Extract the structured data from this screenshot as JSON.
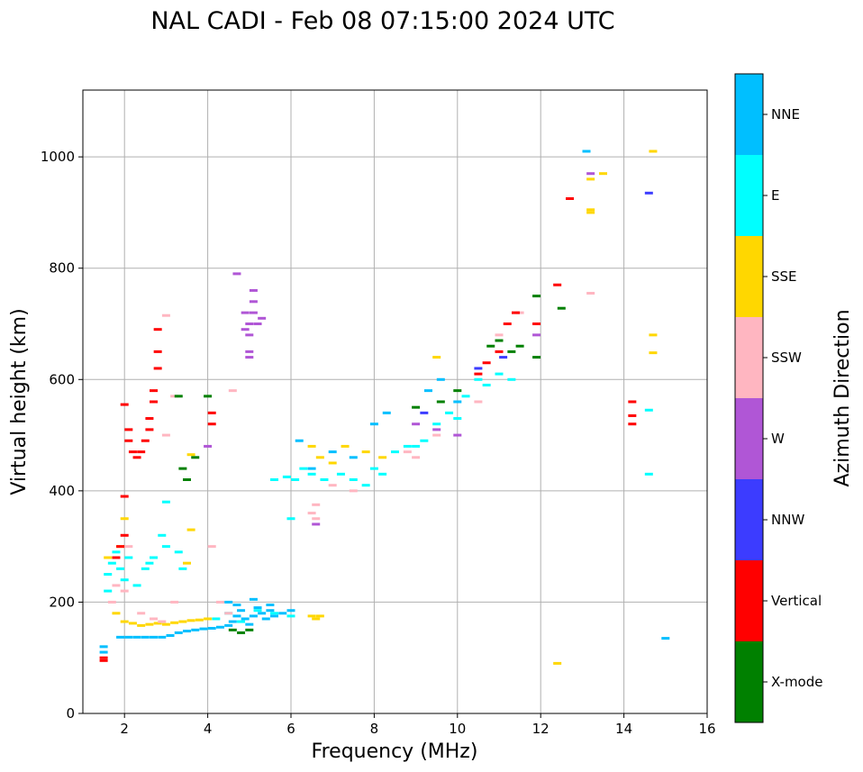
{
  "chart_data": {
    "type": "scatter",
    "title": "NAL CADI - Feb 08 07:15:00 2024 UTC",
    "xlabel": "Frequency (MHz)",
    "ylabel": "Virtual height (km)",
    "xlim": [
      1,
      16
    ],
    "ylim": [
      0,
      1120
    ],
    "xticks": [
      "2",
      "4",
      "6",
      "8",
      "10",
      "12",
      "14",
      "16"
    ],
    "yticks": [
      "0",
      "200",
      "400",
      "600",
      "800",
      "1000"
    ],
    "grid": true,
    "colorbar": {
      "label": "Azimuth Direction",
      "categories": [
        {
          "name": "X-mode",
          "color": "#008000"
        },
        {
          "name": "Vertical",
          "color": "#ff0000"
        },
        {
          "name": "NNW",
          "color": "#3c3cff"
        },
        {
          "name": "W",
          "color": "#b056d6"
        },
        {
          "name": "SSW",
          "color": "#ffb6c1"
        },
        {
          "name": "SSE",
          "color": "#ffd700"
        },
        {
          "name": "E",
          "color": "#00ffff"
        },
        {
          "name": "NNE",
          "color": "#00bfff"
        }
      ]
    },
    "series": [
      {
        "name": "NNE",
        "color": "#00bfff",
        "points": [
          [
            1.5,
            120
          ],
          [
            1.5,
            110
          ],
          [
            1.9,
            137
          ],
          [
            2.1,
            137
          ],
          [
            2.3,
            137
          ],
          [
            2.5,
            137
          ],
          [
            2.7,
            137
          ],
          [
            2.9,
            137
          ],
          [
            3.1,
            140
          ],
          [
            3.3,
            145
          ],
          [
            3.5,
            148
          ],
          [
            3.7,
            150
          ],
          [
            3.9,
            152
          ],
          [
            4.1,
            153
          ],
          [
            4.3,
            155
          ],
          [
            4.5,
            158
          ],
          [
            4.6,
            165
          ],
          [
            4.7,
            175
          ],
          [
            4.8,
            185
          ],
          [
            4.9,
            170
          ],
          [
            5.0,
            160
          ],
          [
            5.1,
            175
          ],
          [
            5.2,
            190
          ],
          [
            5.3,
            180
          ],
          [
            5.4,
            170
          ],
          [
            5.5,
            185
          ],
          [
            5.6,
            175
          ],
          [
            5.8,
            180
          ],
          [
            6.0,
            185
          ],
          [
            4.5,
            200
          ],
          [
            4.7,
            195
          ],
          [
            5.1,
            205
          ],
          [
            5.5,
            195
          ],
          [
            6.2,
            490
          ],
          [
            6.5,
            440
          ],
          [
            7.0,
            470
          ],
          [
            7.5,
            460
          ],
          [
            8.0,
            520
          ],
          [
            8.3,
            540
          ],
          [
            9.3,
            580
          ],
          [
            9.6,
            600
          ],
          [
            10.0,
            560
          ],
          [
            13.1,
            1010
          ],
          [
            15.0,
            135
          ]
        ]
      },
      {
        "name": "E",
        "color": "#00ffff",
        "points": [
          [
            1.6,
            250
          ],
          [
            1.7,
            270
          ],
          [
            1.8,
            290
          ],
          [
            1.6,
            220
          ],
          [
            1.9,
            260
          ],
          [
            2.0,
            240
          ],
          [
            2.1,
            280
          ],
          [
            2.3,
            230
          ],
          [
            2.5,
            260
          ],
          [
            2.6,
            270
          ],
          [
            2.7,
            280
          ],
          [
            2.9,
            320
          ],
          [
            3.0,
            300
          ],
          [
            3.3,
            290
          ],
          [
            3.4,
            260
          ],
          [
            4.2,
            170
          ],
          [
            4.5,
            180
          ],
          [
            4.8,
            165
          ],
          [
            5.2,
            185
          ],
          [
            5.6,
            180
          ],
          [
            6.0,
            175
          ],
          [
            5.6,
            420
          ],
          [
            5.9,
            425
          ],
          [
            6.1,
            420
          ],
          [
            6.0,
            350
          ],
          [
            6.3,
            440
          ],
          [
            6.5,
            430
          ],
          [
            6.8,
            420
          ],
          [
            7.2,
            430
          ],
          [
            7.5,
            420
          ],
          [
            7.8,
            410
          ],
          [
            8.0,
            440
          ],
          [
            8.2,
            430
          ],
          [
            8.5,
            470
          ],
          [
            8.8,
            480
          ],
          [
            9.0,
            480
          ],
          [
            9.2,
            490
          ],
          [
            9.5,
            520
          ],
          [
            9.8,
            540
          ],
          [
            10.0,
            530
          ],
          [
            10.2,
            570
          ],
          [
            10.5,
            600
          ],
          [
            10.7,
            590
          ],
          [
            11.0,
            610
          ],
          [
            11.3,
            600
          ],
          [
            14.6,
            545
          ],
          [
            14.6,
            430
          ],
          [
            3.0,
            380
          ]
        ]
      },
      {
        "name": "SSE",
        "color": "#ffd700",
        "points": [
          [
            1.8,
            180
          ],
          [
            2.0,
            165
          ],
          [
            2.2,
            162
          ],
          [
            2.4,
            158
          ],
          [
            2.6,
            160
          ],
          [
            2.8,
            162
          ],
          [
            3.0,
            160
          ],
          [
            3.2,
            163
          ],
          [
            3.4,
            165
          ],
          [
            3.6,
            167
          ],
          [
            3.8,
            168
          ],
          [
            4.0,
            170
          ],
          [
            6.5,
            175
          ],
          [
            6.6,
            170
          ],
          [
            6.7,
            175
          ],
          [
            1.6,
            280
          ],
          [
            1.9,
            300
          ],
          [
            2.0,
            350
          ],
          [
            3.5,
            270
          ],
          [
            3.6,
            330
          ],
          [
            3.6,
            465
          ],
          [
            6.5,
            480
          ],
          [
            6.7,
            460
          ],
          [
            7.0,
            450
          ],
          [
            7.3,
            480
          ],
          [
            7.8,
            470
          ],
          [
            8.2,
            460
          ],
          [
            9.5,
            640
          ],
          [
            13.2,
            960
          ],
          [
            13.2,
            905
          ],
          [
            13.2,
            900
          ],
          [
            13.5,
            970
          ],
          [
            14.7,
            1010
          ],
          [
            14.7,
            680
          ],
          [
            14.7,
            648
          ],
          [
            12.4,
            90
          ]
        ]
      },
      {
        "name": "SSW",
        "color": "#ffb6c1",
        "points": [
          [
            1.7,
            200
          ],
          [
            1.8,
            230
          ],
          [
            2.0,
            220
          ],
          [
            2.1,
            300
          ],
          [
            2.4,
            180
          ],
          [
            2.7,
            170
          ],
          [
            2.9,
            165
          ],
          [
            3.2,
            200
          ],
          [
            4.1,
            300
          ],
          [
            4.3,
            200
          ],
          [
            4.5,
            180
          ],
          [
            4.6,
            580
          ],
          [
            3.0,
            500
          ],
          [
            3.0,
            715
          ],
          [
            6.5,
            360
          ],
          [
            6.6,
            350
          ],
          [
            6.6,
            375
          ],
          [
            7.0,
            410
          ],
          [
            7.5,
            400
          ],
          [
            8.8,
            470
          ],
          [
            9.0,
            460
          ],
          [
            9.5,
            500
          ],
          [
            10.5,
            560
          ],
          [
            11.0,
            680
          ],
          [
            11.5,
            720
          ],
          [
            13.2,
            755
          ],
          [
            3.2,
            570
          ]
        ]
      },
      {
        "name": "W",
        "color": "#b056d6",
        "points": [
          [
            4.7,
            790
          ],
          [
            4.9,
            720
          ],
          [
            5.0,
            700
          ],
          [
            5.0,
            680
          ],
          [
            5.1,
            740
          ],
          [
            5.1,
            760
          ],
          [
            5.2,
            700
          ],
          [
            4.9,
            690
          ],
          [
            5.0,
            650
          ],
          [
            5.1,
            720
          ],
          [
            5.3,
            710
          ],
          [
            5.0,
            640
          ],
          [
            4.0,
            480
          ],
          [
            6.6,
            340
          ],
          [
            9.0,
            520
          ],
          [
            9.5,
            510
          ],
          [
            10.0,
            500
          ],
          [
            11.9,
            680
          ],
          [
            13.2,
            970
          ]
        ]
      },
      {
        "name": "NNW",
        "color": "#3c3cff",
        "points": [
          [
            14.6,
            935
          ],
          [
            9.2,
            540
          ],
          [
            10.5,
            620
          ],
          [
            11.1,
            640
          ]
        ]
      },
      {
        "name": "Vertical",
        "color": "#ff0000",
        "points": [
          [
            1.5,
            100
          ],
          [
            1.5,
            95
          ],
          [
            1.8,
            280
          ],
          [
            1.9,
            300
          ],
          [
            2.0,
            320
          ],
          [
            2.0,
            390
          ],
          [
            2.0,
            555
          ],
          [
            2.1,
            510
          ],
          [
            2.1,
            490
          ],
          [
            2.2,
            470
          ],
          [
            2.3,
            460
          ],
          [
            2.4,
            470
          ],
          [
            2.5,
            490
          ],
          [
            2.6,
            510
          ],
          [
            2.6,
            530
          ],
          [
            2.7,
            560
          ],
          [
            2.7,
            580
          ],
          [
            2.8,
            620
          ],
          [
            2.8,
            650
          ],
          [
            2.8,
            690
          ],
          [
            4.1,
            520
          ],
          [
            4.1,
            540
          ],
          [
            10.5,
            610
          ],
          [
            10.7,
            630
          ],
          [
            11.0,
            650
          ],
          [
            11.2,
            700
          ],
          [
            11.4,
            720
          ],
          [
            11.9,
            700
          ],
          [
            12.7,
            925
          ],
          [
            12.4,
            770
          ],
          [
            14.2,
            560
          ],
          [
            14.2,
            535
          ],
          [
            14.2,
            520
          ]
        ]
      },
      {
        "name": "X-mode",
        "color": "#008000",
        "points": [
          [
            3.4,
            440
          ],
          [
            3.5,
            420
          ],
          [
            3.7,
            460
          ],
          [
            4.0,
            570
          ],
          [
            3.3,
            570
          ],
          [
            4.8,
            145
          ],
          [
            5.0,
            150
          ],
          [
            4.6,
            150
          ],
          [
            9.0,
            550
          ],
          [
            9.6,
            560
          ],
          [
            10.0,
            580
          ],
          [
            10.8,
            660
          ],
          [
            11.0,
            670
          ],
          [
            11.3,
            650
          ],
          [
            11.5,
            660
          ],
          [
            11.9,
            640
          ],
          [
            11.9,
            750
          ],
          [
            12.5,
            728
          ]
        ]
      }
    ]
  }
}
